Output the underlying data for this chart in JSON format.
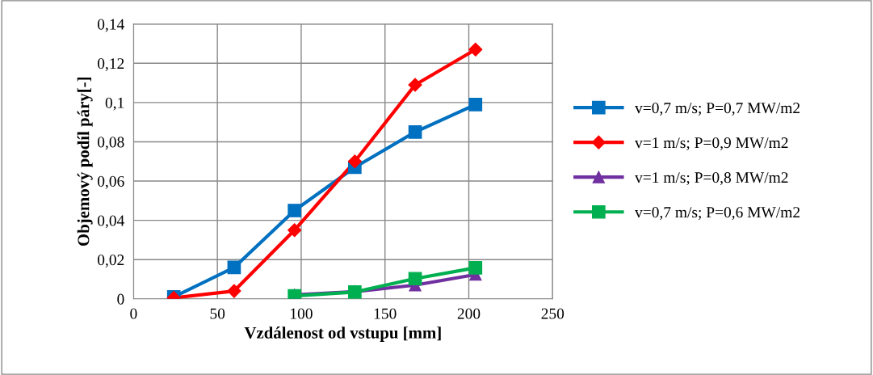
{
  "chart_data": {
    "type": "line",
    "xlabel": "Vzdálenost od vstupu [mm]",
    "ylabel": "Objemový podíl páry[-]",
    "x": [
      24,
      60,
      96,
      132,
      168,
      204
    ],
    "series": [
      {
        "name": "v=0,7 m/s; P=0,7 MW/m2",
        "color": "#0070c0",
        "marker": "square",
        "values": [
          0.001,
          0.016,
          0.045,
          0.067,
          0.085,
          0.099
        ]
      },
      {
        "name": "v=1 m/s; P=0,9 MW/m2",
        "color": "#ff0000",
        "marker": "diamond",
        "values": [
          0.0005,
          0.004,
          0.035,
          0.07,
          0.109,
          0.127
        ]
      },
      {
        "name": "v=1 m/s; P=0,8 MW/m2",
        "color": "#7030a0",
        "marker": "triangle",
        "values": [
          null,
          null,
          0.002,
          0.0037,
          0.007,
          0.0124
        ]
      },
      {
        "name": "v=0,7 m/s; P=0,6 MW/m2",
        "color": "#00b050",
        "marker": "square",
        "values": [
          null,
          null,
          0.0015,
          0.0035,
          0.0103,
          0.0158
        ]
      }
    ],
    "xlim": [
      0,
      250
    ],
    "xticks": [
      0,
      50,
      100,
      150,
      200,
      250
    ],
    "ylim": [
      0,
      0.14
    ],
    "yticks": [
      {
        "value": 0,
        "label": "0"
      },
      {
        "value": 0.02,
        "label": "0,02"
      },
      {
        "value": 0.04,
        "label": "0,04"
      },
      {
        "value": 0.06,
        "label": "0,06"
      },
      {
        "value": 0.08,
        "label": "0,08"
      },
      {
        "value": 0.1,
        "label": "0,1"
      },
      {
        "value": 0.12,
        "label": "0,12"
      },
      {
        "value": 0.14,
        "label": "0,14"
      }
    ],
    "grid": true,
    "legend": "right",
    "line_style": "solid"
  }
}
